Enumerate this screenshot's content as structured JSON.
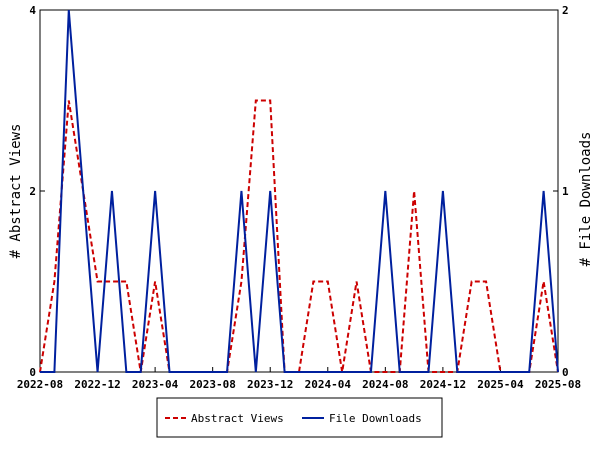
{
  "chart_data": {
    "type": "line",
    "x": [
      "2022-08",
      "2022-09",
      "2022-10",
      "2022-11",
      "2022-12",
      "2023-01",
      "2023-02",
      "2023-03",
      "2023-04",
      "2023-05",
      "2023-06",
      "2023-07",
      "2023-08",
      "2023-09",
      "2023-10",
      "2023-11",
      "2023-12",
      "2024-01",
      "2024-02",
      "2024-03",
      "2024-04",
      "2024-05",
      "2024-06",
      "2024-07",
      "2024-08",
      "2024-09",
      "2024-10",
      "2024-11",
      "2024-12",
      "2025-01",
      "2025-02",
      "2025-03",
      "2025-04",
      "2025-05",
      "2025-06",
      "2025-07",
      "2025-08"
    ],
    "x_ticks": [
      "2022-08",
      "2022-12",
      "2023-04",
      "2023-08",
      "2023-12",
      "2024-04",
      "2024-08",
      "2024-12",
      "2025-04",
      "2025-08"
    ],
    "series": [
      {
        "name": "Abstract Views",
        "axis": "left",
        "color": "#cc0000",
        "dash": "dashed",
        "values": [
          0,
          1,
          3,
          2,
          1,
          1,
          1,
          0,
          1,
          0,
          0,
          0,
          0,
          0,
          1,
          3,
          3,
          0,
          0,
          1,
          1,
          0,
          1,
          0,
          0,
          0,
          2,
          0,
          0,
          0,
          1,
          1,
          0,
          0,
          0,
          1,
          0
        ]
      },
      {
        "name": "File Downloads",
        "axis": "right",
        "color": "#00209e",
        "dash": "solid",
        "values": [
          0,
          0,
          2,
          1,
          0,
          1,
          0,
          0,
          1,
          0,
          0,
          0,
          0,
          0,
          1,
          0,
          1,
          0,
          0,
          0,
          0,
          0,
          0,
          0,
          1,
          0,
          0,
          0,
          1,
          0,
          0,
          0,
          0,
          0,
          0,
          1,
          0
        ]
      }
    ],
    "ylabel": "# Abstract Views",
    "y2label": "# File Downloads",
    "ylim": [
      0,
      4
    ],
    "y2lim": [
      0,
      2
    ],
    "yticks": [
      "0",
      "2",
      "4"
    ],
    "y2ticks": [
      "0",
      "1",
      "2"
    ],
    "legend_position": "bottom-center",
    "grid": false
  }
}
